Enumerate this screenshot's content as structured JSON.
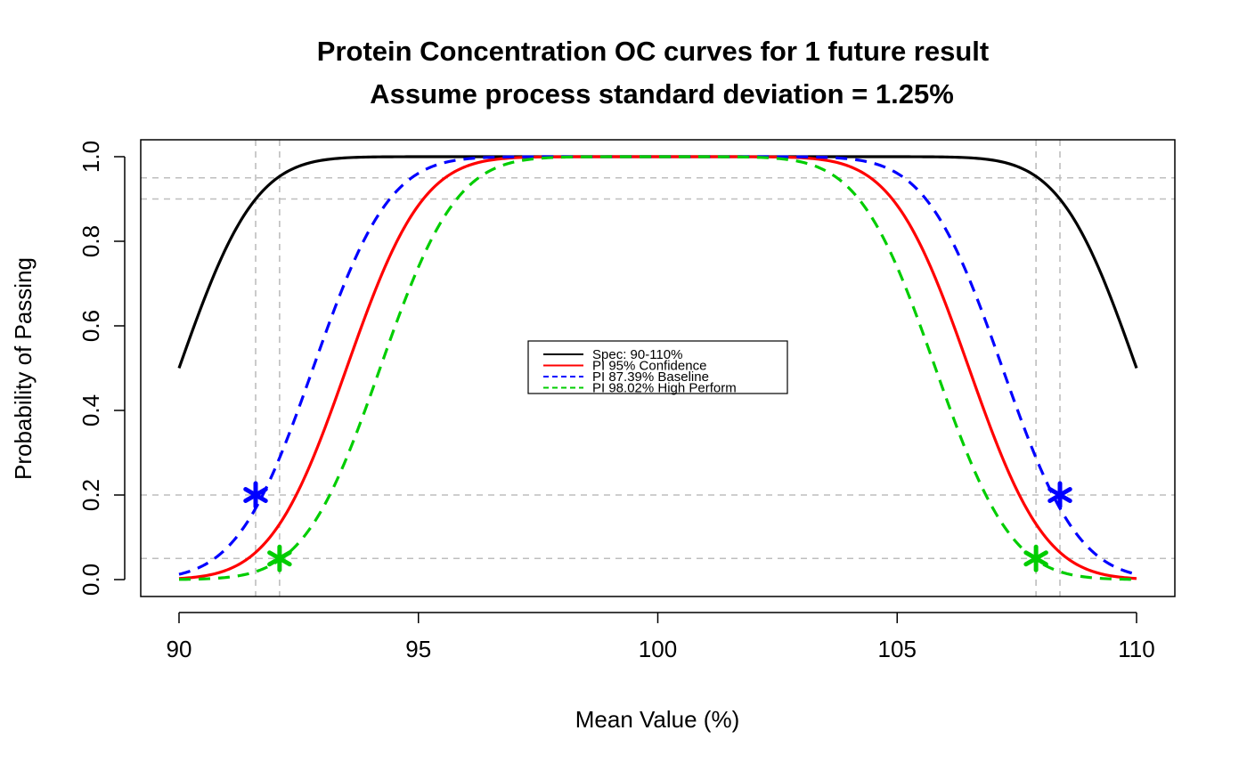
{
  "chart_data": {
    "type": "line",
    "title": "Protein Concentration OC curves for 1 future result",
    "subtitle": "Assume process standard deviation = 1.25%",
    "xlabel": "Mean Value (%)",
    "ylabel": "Probability of Passing",
    "xlim": [
      89.2,
      110.8
    ],
    "ylim": [
      -0.04,
      1.04
    ],
    "x_ticks": [
      90,
      95,
      100,
      105,
      110
    ],
    "x_tick_labels": [
      "90",
      "95",
      "100",
      "105",
      "110"
    ],
    "y_ticks": [
      0.0,
      0.2,
      0.4,
      0.6,
      0.8,
      1.0
    ],
    "y_tick_labels": [
      "0.0",
      "0.2",
      "0.4",
      "0.6",
      "0.8",
      "1.0"
    ],
    "grid": false,
    "sigma": 1.25,
    "reference_lines": {
      "horizontal": [
        0.05,
        0.2,
        0.9,
        0.95
      ],
      "vertical": [
        91.6,
        92.1,
        107.9,
        108.4
      ],
      "color": "#bebebe"
    },
    "series": [
      {
        "name": "Spec: 90-110%",
        "lower": 90.0,
        "upper": 110.0,
        "color": "#000000",
        "dash": "solid"
      },
      {
        "name": "PI 95% Confidence",
        "lower": 93.5,
        "upper": 106.5,
        "color": "#ff0000",
        "dash": "solid"
      },
      {
        "name": "PI 87.39% Baseline",
        "lower": 92.8,
        "upper": 107.2,
        "color": "#0000ff",
        "dash": "dashed"
      },
      {
        "name": "PI 98.02% High Perform",
        "lower": 94.2,
        "upper": 105.8,
        "color": "#00cd00",
        "dash": "dashed"
      }
    ],
    "markers": [
      {
        "x": 91.6,
        "y": 0.2,
        "color": "#0000ff",
        "symbol": "asterisk"
      },
      {
        "x": 108.4,
        "y": 0.2,
        "color": "#0000ff",
        "symbol": "asterisk"
      },
      {
        "x": 92.1,
        "y": 0.05,
        "color": "#00cd00",
        "symbol": "asterisk"
      },
      {
        "x": 107.9,
        "y": 0.05,
        "color": "#00cd00",
        "symbol": "asterisk"
      }
    ],
    "legend_position": "center"
  }
}
